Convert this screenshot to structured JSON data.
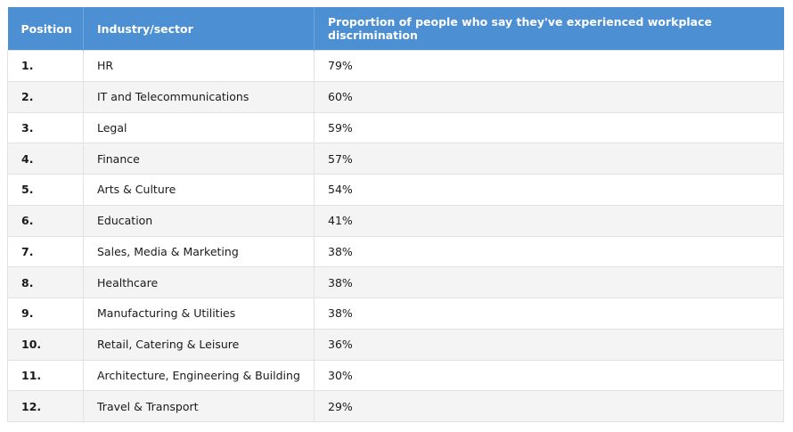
{
  "table": {
    "header": [
      "Position",
      "Industry/sector",
      "Proportion of people who say they've experienced workplace discrimination"
    ],
    "rows": [
      [
        "1.",
        "HR",
        "79%"
      ],
      [
        "2.",
        "IT and Telecommunications",
        "60%"
      ],
      [
        "3.",
        "Legal",
        "59%"
      ],
      [
        "4.",
        "Finance",
        "57%"
      ],
      [
        "5.",
        "Arts & Culture",
        "54%"
      ],
      [
        "6.",
        "Education",
        "41%"
      ],
      [
        "7.",
        "Sales, Media & Marketing",
        "38%"
      ],
      [
        "8.",
        "Healthcare",
        "38%"
      ],
      [
        "9.",
        "Manufacturing & Utilities",
        "38%"
      ],
      [
        "10.",
        "Retail, Catering & Leisure",
        "36%"
      ],
      [
        "11.",
        "Architecture, Engineering & Building",
        "30%"
      ],
      [
        "12.",
        "Travel & Transport",
        "29%"
      ]
    ]
  }
}
